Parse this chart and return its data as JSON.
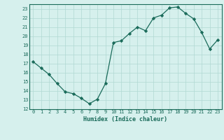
{
  "x": [
    0,
    1,
    2,
    3,
    4,
    5,
    6,
    7,
    8,
    9,
    10,
    11,
    12,
    13,
    14,
    15,
    16,
    17,
    18,
    19,
    20,
    21,
    22,
    23
  ],
  "y": [
    17.2,
    16.5,
    15.8,
    14.8,
    13.9,
    13.7,
    13.2,
    12.6,
    13.1,
    14.8,
    19.3,
    19.5,
    20.3,
    21.0,
    20.6,
    22.0,
    22.3,
    23.1,
    23.2,
    22.5,
    21.9,
    20.4,
    18.6,
    19.6
  ],
  "line_color": "#1a6b5a",
  "marker": "D",
  "marker_size": 2.2,
  "bg_color": "#d6f0ed",
  "grid_color": "#b0d8d3",
  "tick_label_color": "#1a6b5a",
  "xlabel": "Humidex (Indice chaleur)",
  "ylim": [
    12,
    23.5
  ],
  "xlim": [
    -0.5,
    23.5
  ],
  "yticks": [
    12,
    13,
    14,
    15,
    16,
    17,
    18,
    19,
    20,
    21,
    22,
    23
  ],
  "xticks": [
    0,
    1,
    2,
    3,
    4,
    5,
    6,
    7,
    8,
    9,
    10,
    11,
    12,
    13,
    14,
    15,
    16,
    17,
    18,
    19,
    20,
    21,
    22,
    23
  ]
}
